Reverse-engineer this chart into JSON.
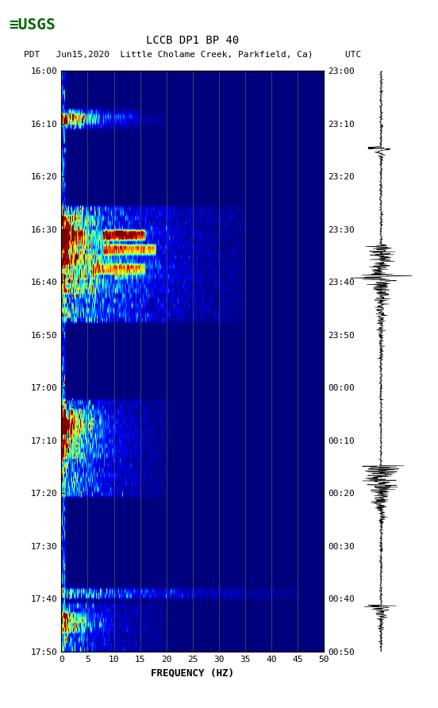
{
  "title_line1": "LCCB DP1 BP 40",
  "title_line2": "PDT   Jun15,2020  Little Cholame Creek, Parkfield, Ca)      UTC",
  "xlabel": "FREQUENCY (HZ)",
  "freq_min": 0,
  "freq_max": 50,
  "freq_ticks": [
    0,
    5,
    10,
    15,
    20,
    25,
    30,
    35,
    40,
    45,
    50
  ],
  "time_labels_left": [
    "16:00",
    "16:10",
    "16:20",
    "16:30",
    "16:40",
    "16:50",
    "17:00",
    "17:10",
    "17:20",
    "17:30",
    "17:40",
    "17:50"
  ],
  "time_labels_right": [
    "23:00",
    "23:10",
    "23:20",
    "23:30",
    "23:40",
    "23:50",
    "00:00",
    "00:10",
    "00:20",
    "00:30",
    "00:40",
    "00:50"
  ],
  "n_time_steps": 120,
  "n_freq_steps": 500,
  "background_color": "#ffffff",
  "colormap": "jet",
  "vline_color": "#808040",
  "vline_freqs": [
    5,
    10,
    15,
    20,
    25,
    30,
    35,
    40,
    45
  ],
  "fig_width": 5.52,
  "fig_height": 8.92,
  "dpi": 100,
  "usgs_color": "#006600",
  "panel_bg": "#000080"
}
